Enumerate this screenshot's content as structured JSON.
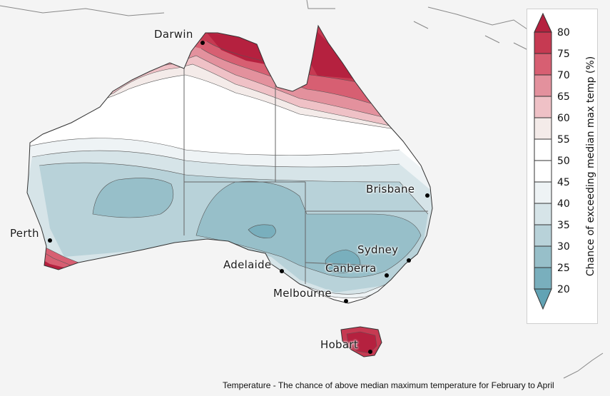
{
  "map": {
    "cities": [
      {
        "name": "Darwin"
      },
      {
        "name": "Brisbane"
      },
      {
        "name": "Perth"
      },
      {
        "name": "Sydney"
      },
      {
        "name": "Adelaide"
      },
      {
        "name": "Canberra"
      },
      {
        "name": "Melbourne"
      },
      {
        "name": "Hobart"
      }
    ]
  },
  "legend": {
    "title": "Chance of exceeding median max temp (%)",
    "ticks": [
      "80",
      "75",
      "70",
      "65",
      "60",
      "55",
      "50",
      "45",
      "40",
      "35",
      "30",
      "25",
      "20"
    ],
    "colors": {
      "above80": "#b5213f",
      "75": "#c63a52",
      "70": "#d75f72",
      "65": "#e3919d",
      "60": "#efc1c6",
      "55": "#f4ebe9",
      "50": "#ffffff",
      "45": "#eef3f5",
      "40": "#d6e4e8",
      "35": "#b8d2d9",
      "30": "#97bfc9",
      "25": "#79afbd",
      "below20": "#62a3b4"
    }
  },
  "caption": "Temperature - The chance of above median maximum temperature for February to April"
}
